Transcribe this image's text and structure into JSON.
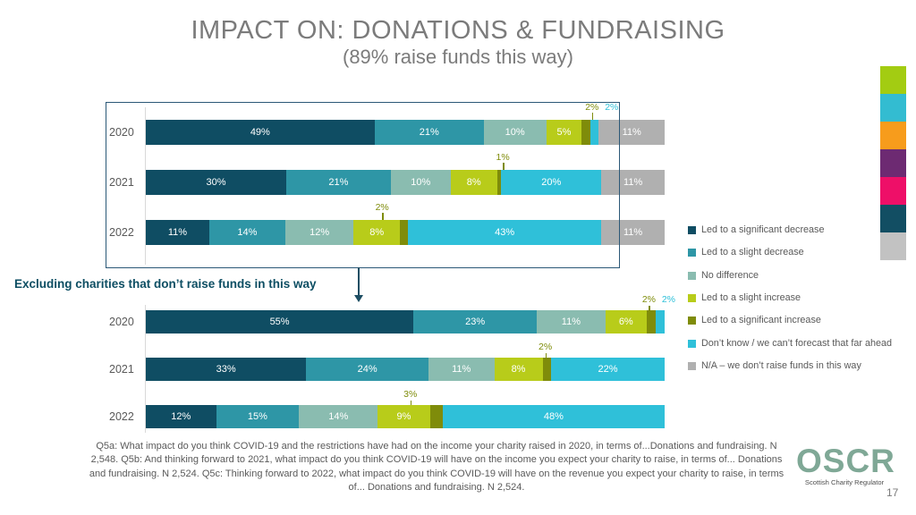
{
  "slide": {
    "title": "IMPACT ON: DONATIONS & FUNDRAISING",
    "subtitle": "(89% raise funds this way)",
    "section_label": "Excluding charities that don’t raise funds in this way",
    "footnote": "Q5a: What impact do you think COVID-19 and the restrictions have had on the income your charity raised in 2020, in terms of...Donations and fundraising. N 2,548. Q5b: And thinking forward to 2021, what impact do you think COVID-19 will have on the income you expect your charity to raise, in terms of... Donations and fundraising. N 2,524. Q5c: Thinking forward to 2022, what impact do you think COVID-19 will have on the revenue you expect your charity to raise, in terms of... Donations and fundraising. N 2,524.",
    "logo_text": "OSCR",
    "logo_tagline": "Scottish Charity Regulator",
    "page_number": "17"
  },
  "colors": {
    "significant_decrease": "#0f4d63",
    "slight_decrease": "#2e96a6",
    "no_difference": "#8abcb0",
    "slight_increase": "#b8cc1a",
    "significant_increase": "#7f8c0a",
    "dont_know": "#2fc0d9",
    "na_gray": "#b0b0b0",
    "box_border": "#2b5877",
    "heading_teal": "#0d4e63",
    "title_gray": "#7b7b7b",
    "logo_green": "#7fa896",
    "accent_strip": [
      "#a3cc12",
      "#33bcd1",
      "#f79c1c",
      "#6d2a72",
      "#ee0f68",
      "#124e63",
      "#c2c2c2"
    ]
  },
  "legend": {
    "items": [
      {
        "label": "Led to a significant decrease",
        "color": "#0f4d63"
      },
      {
        "label": "Led to a slight decrease",
        "color": "#2e96a6"
      },
      {
        "label": "No difference",
        "color": "#8abcb0"
      },
      {
        "label": "Led to a slight increase",
        "color": "#b8cc1a"
      },
      {
        "label": "Led to a significant increase",
        "color": "#7f8c0a"
      },
      {
        "label": "Don’t know / we can’t forecast that far ahead",
        "color": "#2fc0d9"
      },
      {
        "label": "N/A – we don’t raise funds in this way",
        "color": "#b0b0b0"
      }
    ]
  },
  "chart_data": [
    {
      "id": "top-chart-all-charities",
      "type": "bar",
      "stacked": true,
      "orientation": "horizontal",
      "value_suffix": "%",
      "small_label_threshold": 4,
      "categories": [
        "2020",
        "2021",
        "2022"
      ],
      "series": [
        {
          "name": "Led to a significant decrease",
          "color": "#0f4d63",
          "values": [
            49,
            30,
            11
          ]
        },
        {
          "name": "Led to a slight decrease",
          "color": "#2e96a6",
          "values": [
            21,
            21,
            14
          ]
        },
        {
          "name": "No difference",
          "color": "#8abcb0",
          "values": [
            10,
            10,
            12
          ]
        },
        {
          "name": "Led to a slight increase",
          "color": "#b8cc1a",
          "values": [
            5,
            8,
            8
          ]
        },
        {
          "name": "Led to a significant increase",
          "color": "#7f8c0a",
          "values": [
            2,
            1,
            2
          ],
          "leader_line": true
        },
        {
          "name": "Don’t know / we can’t forecast that far ahead",
          "color": "#2fc0d9",
          "values": [
            2,
            20,
            43
          ]
        },
        {
          "name": "N/A – we don’t raise funds in this way",
          "color": "#b0b0b0",
          "values": [
            11,
            11,
            11
          ]
        }
      ]
    },
    {
      "id": "bottom-chart-excluding-non-fundraisers",
      "type": "bar",
      "stacked": true,
      "orientation": "horizontal",
      "value_suffix": "%",
      "small_label_threshold": 4,
      "categories": [
        "2020",
        "2021",
        "2022"
      ],
      "series": [
        {
          "name": "Led to a significant decrease",
          "color": "#0f4d63",
          "values": [
            55,
            33,
            12
          ]
        },
        {
          "name": "Led to a slight decrease",
          "color": "#2e96a6",
          "values": [
            23,
            24,
            15
          ]
        },
        {
          "name": "No difference",
          "color": "#8abcb0",
          "values": [
            11,
            11,
            14
          ]
        },
        {
          "name": "Led to a slight increase",
          "color": "#b8cc1a",
          "values": [
            6,
            8,
            9
          ]
        },
        {
          "name": "Led to a significant increase",
          "color": "#7f8c0a",
          "values": [
            2,
            2,
            3
          ],
          "leader_line": true
        },
        {
          "name": "Don’t know / we can’t forecast that far ahead",
          "color": "#2fc0d9",
          "values": [
            2,
            22,
            48
          ]
        }
      ]
    }
  ]
}
